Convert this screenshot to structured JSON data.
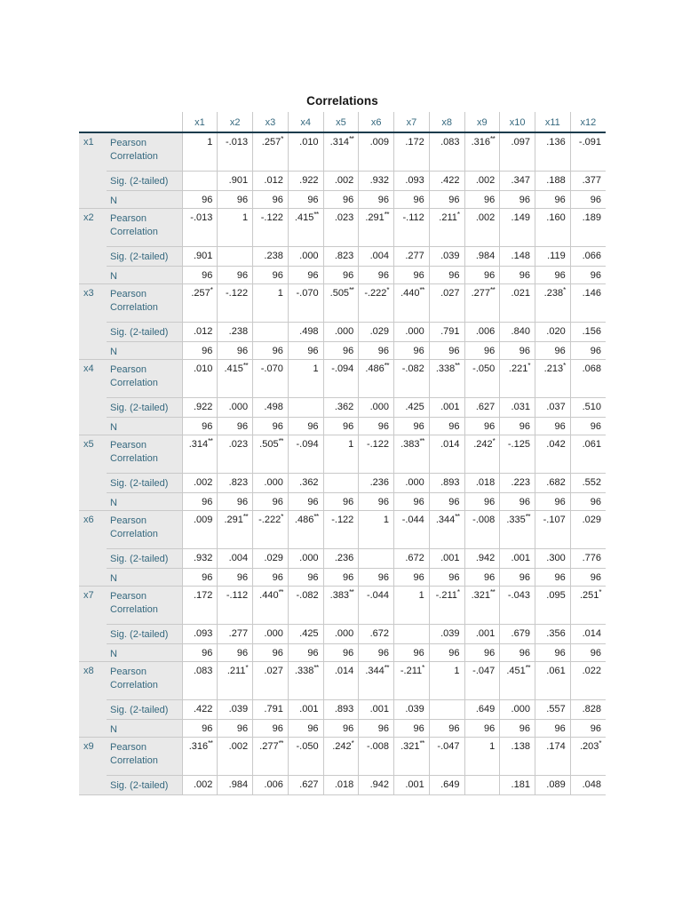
{
  "table": {
    "title": "Correlations",
    "columns": [
      "x1",
      "x2",
      "x3",
      "x4",
      "x5",
      "x6",
      "x7",
      "x8",
      "x9",
      "x10",
      "x11",
      "x12"
    ],
    "row_labels": {
      "pearson": "Pearson Correlation",
      "sig": "Sig. (2-tailed)",
      "n": "N"
    },
    "colors": {
      "label_text": "#35687e",
      "header_rule": "#1b3c4d",
      "stub_bg": "#e9e9e9",
      "grid_line": "#c9c9c9",
      "value_text": "#1c1c1c"
    },
    "blocks": [
      {
        "var": "x1",
        "pearson": [
          "1",
          "-.013",
          ".257*",
          ".010",
          ".314**",
          ".009",
          ".172",
          ".083",
          ".316**",
          ".097",
          ".136",
          "-.091"
        ],
        "sig": [
          "",
          ".901",
          ".012",
          ".922",
          ".002",
          ".932",
          ".093",
          ".422",
          ".002",
          ".347",
          ".188",
          ".377"
        ],
        "n": [
          "96",
          "96",
          "96",
          "96",
          "96",
          "96",
          "96",
          "96",
          "96",
          "96",
          "96",
          "96"
        ]
      },
      {
        "var": "x2",
        "pearson": [
          "-.013",
          "1",
          "-.122",
          ".415**",
          ".023",
          ".291**",
          "-.112",
          ".211*",
          ".002",
          ".149",
          ".160",
          ".189"
        ],
        "sig": [
          ".901",
          "",
          ".238",
          ".000",
          ".823",
          ".004",
          ".277",
          ".039",
          ".984",
          ".148",
          ".119",
          ".066"
        ],
        "n": [
          "96",
          "96",
          "96",
          "96",
          "96",
          "96",
          "96",
          "96",
          "96",
          "96",
          "96",
          "96"
        ]
      },
      {
        "var": "x3",
        "pearson": [
          ".257*",
          "-.122",
          "1",
          "-.070",
          ".505**",
          "-.222*",
          ".440**",
          ".027",
          ".277**",
          ".021",
          ".238*",
          ".146"
        ],
        "sig": [
          ".012",
          ".238",
          "",
          ".498",
          ".000",
          ".029",
          ".000",
          ".791",
          ".006",
          ".840",
          ".020",
          ".156"
        ],
        "n": [
          "96",
          "96",
          "96",
          "96",
          "96",
          "96",
          "96",
          "96",
          "96",
          "96",
          "96",
          "96"
        ]
      },
      {
        "var": "x4",
        "pearson": [
          ".010",
          ".415**",
          "-.070",
          "1",
          "-.094",
          ".486**",
          "-.082",
          ".338**",
          "-.050",
          ".221*",
          ".213*",
          ".068"
        ],
        "sig": [
          ".922",
          ".000",
          ".498",
          "",
          ".362",
          ".000",
          ".425",
          ".001",
          ".627",
          ".031",
          ".037",
          ".510"
        ],
        "n": [
          "96",
          "96",
          "96",
          "96",
          "96",
          "96",
          "96",
          "96",
          "96",
          "96",
          "96",
          "96"
        ]
      },
      {
        "var": "x5",
        "pearson": [
          ".314**",
          ".023",
          ".505**",
          "-.094",
          "1",
          "-.122",
          ".383**",
          ".014",
          ".242*",
          "-.125",
          ".042",
          ".061"
        ],
        "sig": [
          ".002",
          ".823",
          ".000",
          ".362",
          "",
          ".236",
          ".000",
          ".893",
          ".018",
          ".223",
          ".682",
          ".552"
        ],
        "n": [
          "96",
          "96",
          "96",
          "96",
          "96",
          "96",
          "96",
          "96",
          "96",
          "96",
          "96",
          "96"
        ]
      },
      {
        "var": "x6",
        "pearson": [
          ".009",
          ".291**",
          "-.222*",
          ".486**",
          "-.122",
          "1",
          "-.044",
          ".344**",
          "-.008",
          ".335**",
          "-.107",
          ".029"
        ],
        "sig": [
          ".932",
          ".004",
          ".029",
          ".000",
          ".236",
          "",
          ".672",
          ".001",
          ".942",
          ".001",
          ".300",
          ".776"
        ],
        "n": [
          "96",
          "96",
          "96",
          "96",
          "96",
          "96",
          "96",
          "96",
          "96",
          "96",
          "96",
          "96"
        ]
      },
      {
        "var": "x7",
        "pearson": [
          ".172",
          "-.112",
          ".440**",
          "-.082",
          ".383**",
          "-.044",
          "1",
          "-.211*",
          ".321**",
          "-.043",
          ".095",
          ".251*"
        ],
        "sig": [
          ".093",
          ".277",
          ".000",
          ".425",
          ".000",
          ".672",
          "",
          ".039",
          ".001",
          ".679",
          ".356",
          ".014"
        ],
        "n": [
          "96",
          "96",
          "96",
          "96",
          "96",
          "96",
          "96",
          "96",
          "96",
          "96",
          "96",
          "96"
        ]
      },
      {
        "var": "x8",
        "pearson": [
          ".083",
          ".211*",
          ".027",
          ".338**",
          ".014",
          ".344**",
          "-.211*",
          "1",
          "-.047",
          ".451**",
          ".061",
          ".022"
        ],
        "sig": [
          ".422",
          ".039",
          ".791",
          ".001",
          ".893",
          ".001",
          ".039",
          "",
          ".649",
          ".000",
          ".557",
          ".828"
        ],
        "n": [
          "96",
          "96",
          "96",
          "96",
          "96",
          "96",
          "96",
          "96",
          "96",
          "96",
          "96",
          "96"
        ]
      },
      {
        "var": "x9",
        "pearson": [
          ".316**",
          ".002",
          ".277**",
          "-.050",
          ".242*",
          "-.008",
          ".321**",
          "-.047",
          "1",
          ".138",
          ".174",
          ".203*"
        ],
        "sig": [
          ".002",
          ".984",
          ".006",
          ".627",
          ".018",
          ".942",
          ".001",
          ".649",
          "",
          ".181",
          ".089",
          ".048"
        ],
        "n": null
      }
    ]
  }
}
